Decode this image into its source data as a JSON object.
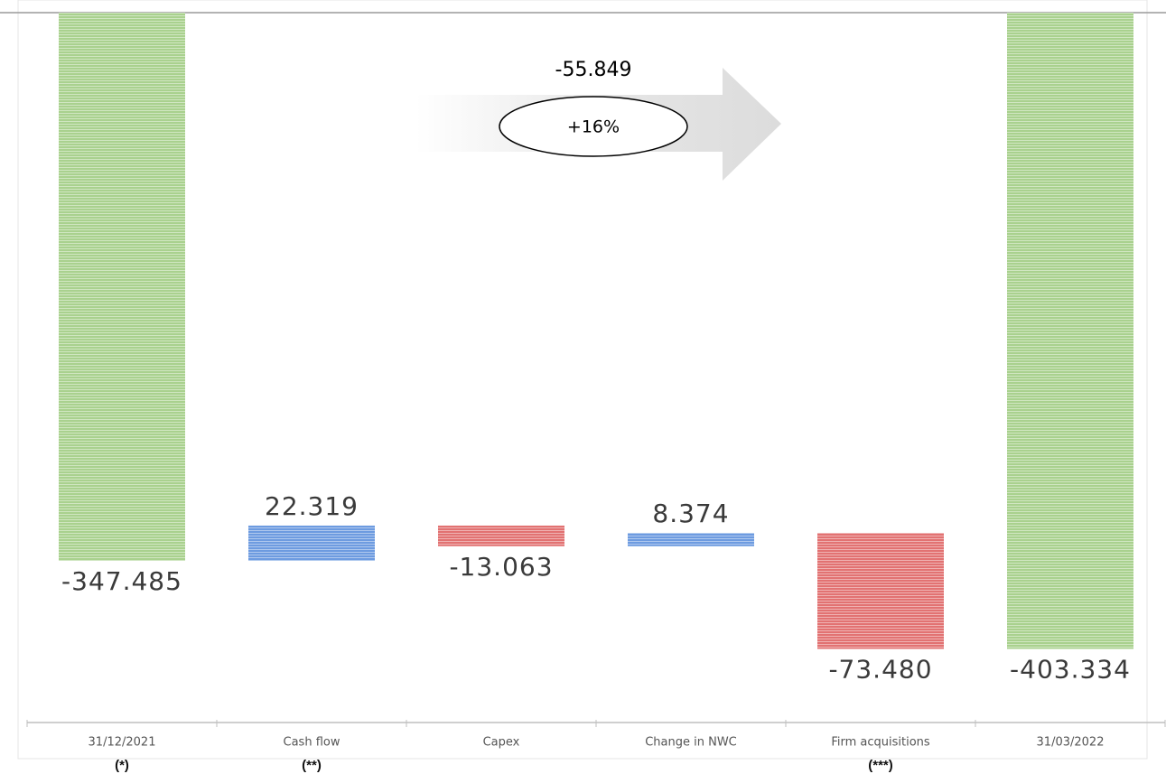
{
  "chart_data": {
    "type": "waterfall",
    "categories": [
      "31/12/2021",
      "Cash flow",
      "Capex",
      "Change in NWC",
      "Firm acquisitions",
      "31/03/2022"
    ],
    "footnotes": [
      "(*)",
      "(**)",
      null,
      null,
      "(***)",
      null
    ],
    "values": [
      -347.485,
      22.319,
      -13.063,
      8.374,
      -73.48,
      -403.334
    ],
    "value_labels": [
      "-347.485",
      "22.319",
      "-13.063",
      "8.374",
      "-73.480",
      "-403.334"
    ],
    "measure": [
      "total",
      "relative",
      "relative",
      "relative",
      "relative",
      "total"
    ],
    "total_color": "#a9d18e",
    "increase_color": "#6d9be0",
    "decrease_color": "#e27272",
    "ylim": [
      -450,
      0
    ],
    "annotation": {
      "change": -55.849,
      "change_pct": "+16%"
    }
  }
}
